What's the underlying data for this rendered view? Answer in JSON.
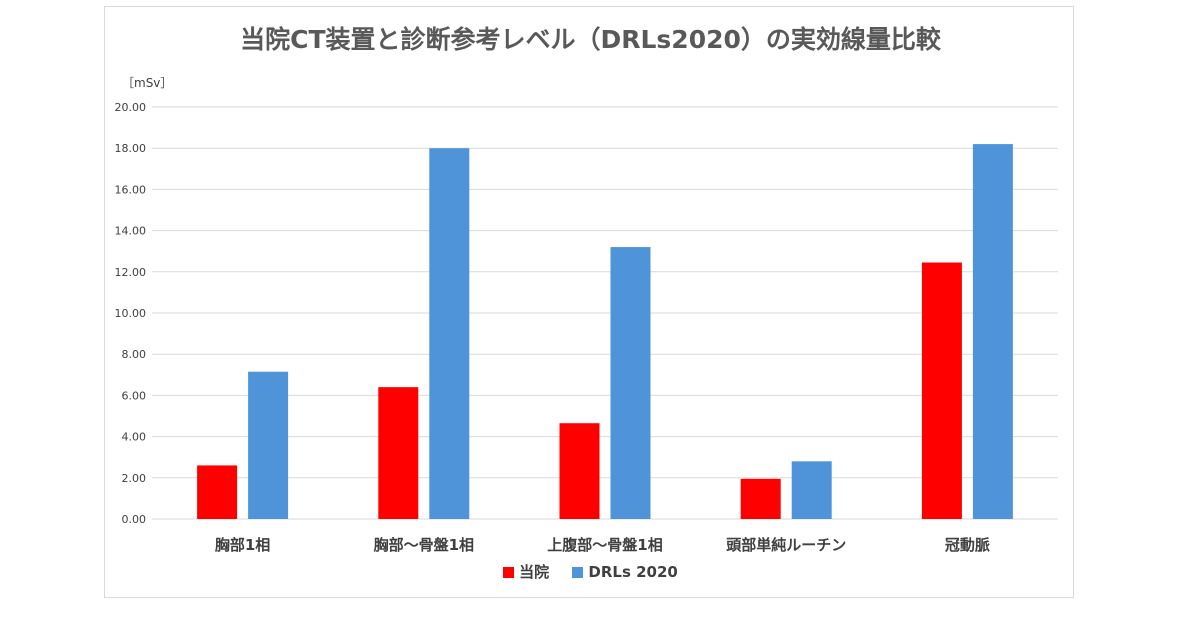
{
  "chart_data": {
    "type": "bar",
    "title": "当院CT装置と診断参考レベル（DRLs2020）の実効線量比較",
    "unit": "［mSv］",
    "categories": [
      "胸部1相",
      "胸部～骨盤1相",
      "上腹部～骨盤1相",
      "頭部単純ルーチン",
      "冠動脈"
    ],
    "series": [
      {
        "name": "当院",
        "color": "#ff0000",
        "values": [
          2.6,
          6.4,
          4.65,
          1.95,
          12.45
        ]
      },
      {
        "name": "DRLs 2020",
        "color": "#4f93d8",
        "values": [
          7.15,
          18.0,
          13.2,
          2.8,
          18.2
        ]
      }
    ],
    "ylim": [
      0,
      20
    ],
    "yticks": [
      "0.00",
      "2.00",
      "4.00",
      "6.00",
      "8.00",
      "10.00",
      "12.00",
      "14.00",
      "16.00",
      "18.00",
      "20.00"
    ],
    "grid": true,
    "legend_position": "bottom"
  }
}
